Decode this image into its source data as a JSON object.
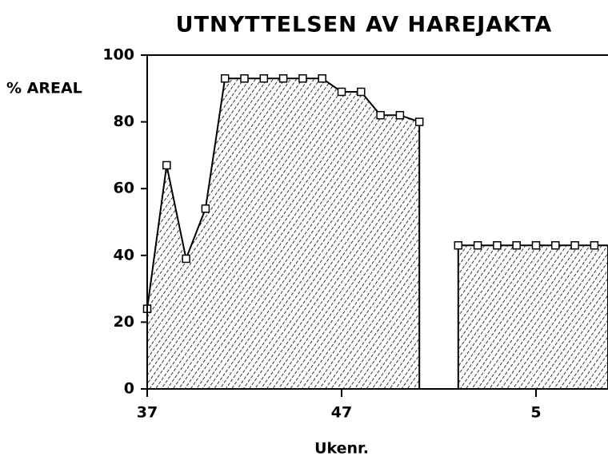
{
  "chart_data": {
    "type": "area",
    "title": "UTNYTTELSEN AV HAREJAKTA",
    "y_label": "% AREAL",
    "x_label": "Ukenr.",
    "categories": [
      "37",
      null,
      null,
      null,
      null,
      null,
      null,
      null,
      null,
      null,
      "47",
      null,
      null,
      null,
      null,
      null,
      null,
      null,
      null,
      null,
      "5",
      null,
      null,
      null
    ],
    "values": [
      24,
      67,
      39,
      54,
      93,
      93,
      93,
      93,
      93,
      93,
      89,
      89,
      82,
      82,
      80,
      null,
      43,
      43,
      43,
      43,
      43,
      43,
      43,
      43
    ],
    "color": "#000000",
    "ylim": [
      0,
      100
    ],
    "yticks": [
      0,
      20,
      40,
      60,
      80,
      100
    ]
  }
}
